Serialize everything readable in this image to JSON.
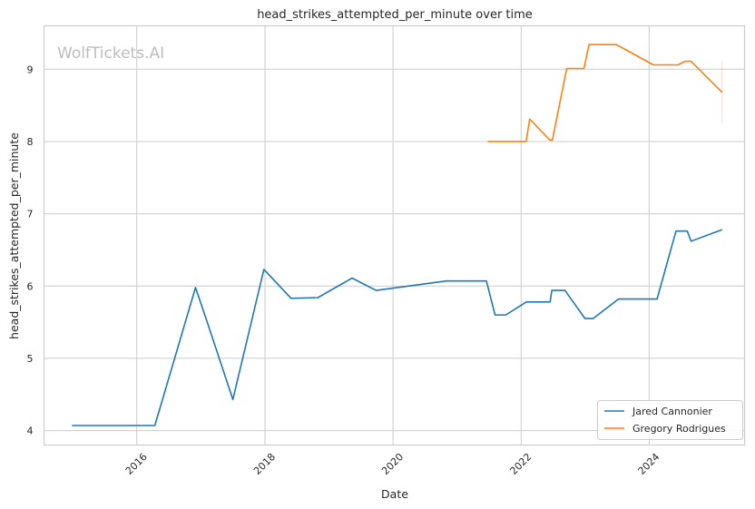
{
  "chart_data": {
    "type": "line",
    "title": "head_strikes_attempted_per_minute over time",
    "xlabel": "Date",
    "ylabel": "head_strikes_attempted_per_minute",
    "watermark": "WolfTickets.AI",
    "x_axis_type": "date",
    "xlim": [
      "2014-07-21",
      "2025-06-28"
    ],
    "ylim": [
      3.8,
      9.6
    ],
    "x_ticks": [
      "2016",
      "2018",
      "2020",
      "2022",
      "2024"
    ],
    "y_ticks": [
      "4",
      "5",
      "6",
      "7",
      "8",
      "9"
    ],
    "grid": true,
    "legend_position": "bottom-right",
    "colors": {
      "Jared Cannonier": "#1f77b4",
      "Gregory Rodrigues": "#ff7f0e"
    },
    "series": [
      {
        "name": "Jared Cannonier",
        "points": [
          [
            "2014-12-27",
            4.07
          ],
          [
            "2016-04-13",
            4.07
          ],
          [
            "2016-12-01",
            5.98
          ],
          [
            "2017-01-30",
            5.55
          ],
          [
            "2017-07-02",
            4.43
          ],
          [
            "2017-12-26",
            6.23
          ],
          [
            "2018-05-30",
            5.83
          ],
          [
            "2018-10-30",
            5.84
          ],
          [
            "2019-05-13",
            6.11
          ],
          [
            "2019-09-27",
            5.94
          ],
          [
            "2020-10-31",
            6.07
          ],
          [
            "2021-06-17",
            6.07
          ],
          [
            "2021-08-05",
            5.6
          ],
          [
            "2021-10-05",
            5.6
          ],
          [
            "2022-01-31",
            5.78
          ],
          [
            "2022-06-15",
            5.78
          ],
          [
            "2022-06-25",
            5.94
          ],
          [
            "2022-09-08",
            5.94
          ],
          [
            "2022-12-31",
            5.55
          ],
          [
            "2023-02-15",
            5.55
          ],
          [
            "2023-07-10",
            5.82
          ],
          [
            "2024-02-15",
            5.82
          ],
          [
            "2024-06-02",
            6.76
          ],
          [
            "2024-08-05",
            6.76
          ],
          [
            "2024-08-27",
            6.62
          ],
          [
            "2025-02-20",
            6.78
          ]
        ]
      },
      {
        "name": "Gregory Rodrigues",
        "points": [
          [
            "2021-06-24",
            8.0
          ],
          [
            "2022-01-29",
            8.0
          ],
          [
            "2022-02-19",
            8.31
          ],
          [
            "2022-06-13",
            8.02
          ],
          [
            "2022-06-28",
            8.02
          ],
          [
            "2022-09-18",
            9.01
          ],
          [
            "2022-12-25",
            9.01
          ],
          [
            "2023-01-23",
            9.34
          ],
          [
            "2023-06-28",
            9.34
          ],
          [
            "2023-09-05",
            9.25
          ],
          [
            "2024-01-25",
            9.06
          ],
          [
            "2024-06-13",
            9.06
          ],
          [
            "2024-07-25",
            9.11
          ],
          [
            "2024-08-27",
            9.11
          ],
          [
            "2025-02-20",
            8.68
          ]
        ],
        "band": {
          "x": "2025-02-20",
          "low": 8.25,
          "high": 9.11
        }
      }
    ]
  }
}
